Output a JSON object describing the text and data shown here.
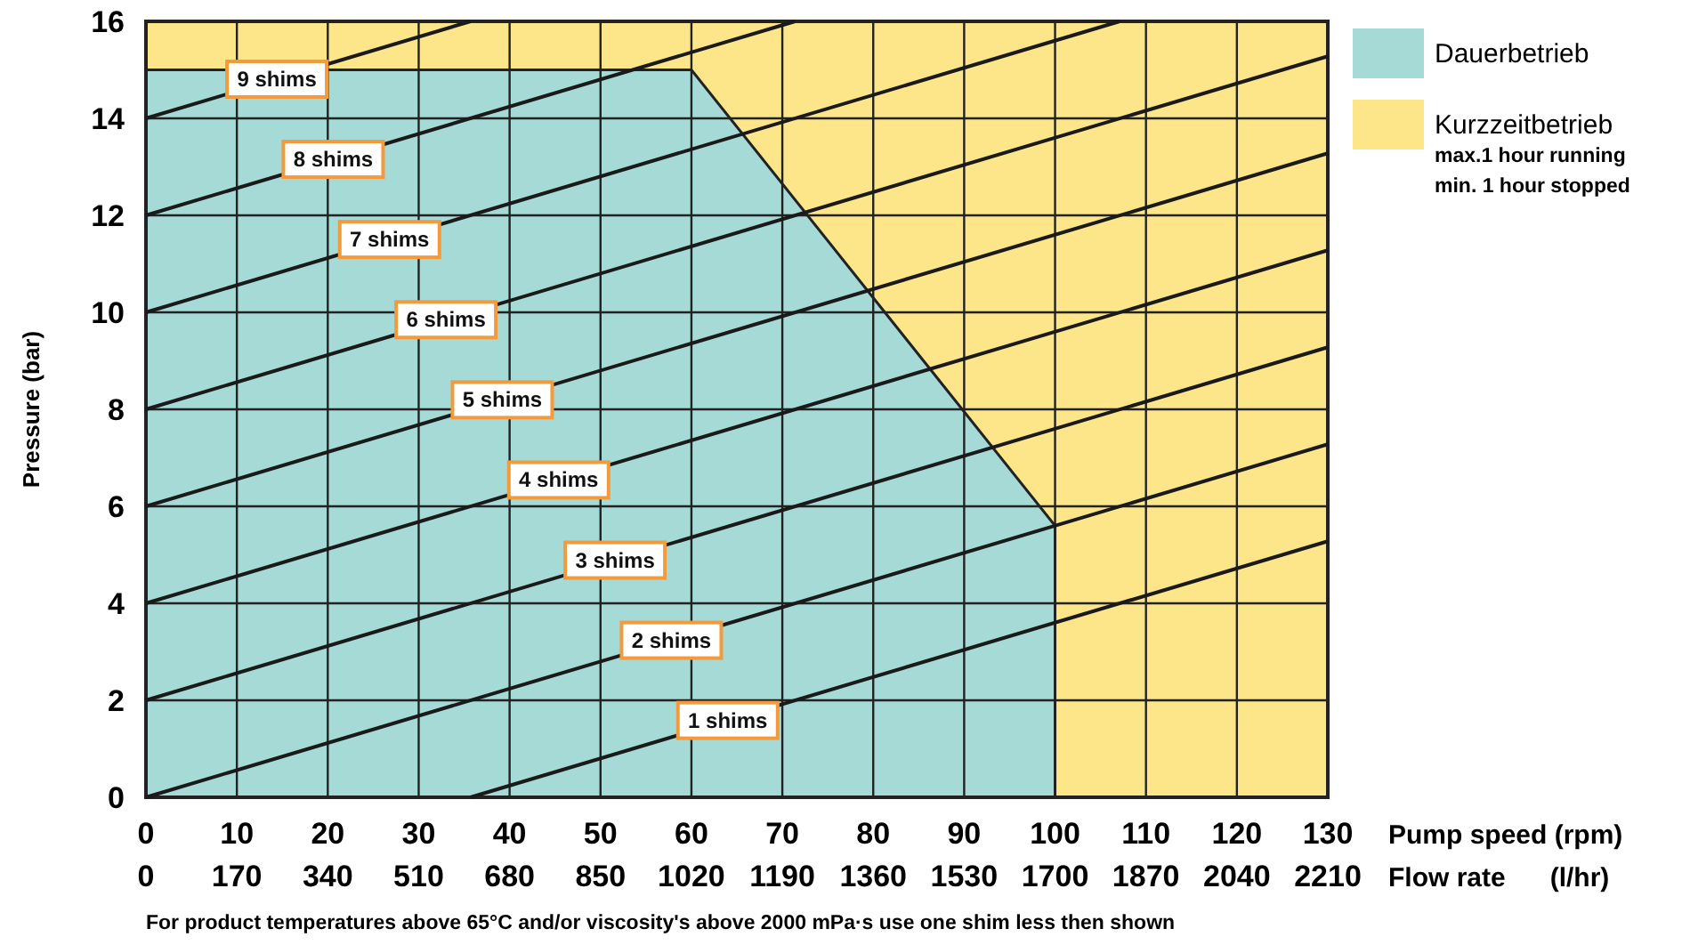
{
  "chart_data": {
    "type": "line",
    "xlabel": "Pump speed (rpm)",
    "x2label": "Flow rate      (l/hr)",
    "ylabel": "Pressure (bar)",
    "xlim": [
      0,
      130
    ],
    "xticks": [
      0,
      10,
      20,
      30,
      40,
      50,
      60,
      70,
      80,
      90,
      100,
      110,
      120,
      130
    ],
    "x2lim": [
      0,
      2210
    ],
    "x2ticks": [
      0,
      170,
      340,
      510,
      680,
      850,
      1020,
      1190,
      1360,
      1530,
      1700,
      1870,
      2040,
      2210
    ],
    "ylim": [
      0,
      16
    ],
    "yticks": [
      0,
      2,
      4,
      6,
      8,
      10,
      12,
      14,
      16
    ],
    "grid": true,
    "legend": "right",
    "series": [
      {
        "type": "area",
        "name": "Dauerbetrieb",
        "color": "#a6dad6",
        "x": [
          0,
          60,
          100,
          100
        ],
        "values": [
          15,
          15,
          5.6,
          0
        ]
      },
      {
        "type": "area",
        "name": "Kurzzeitbetrieb",
        "color": "#fde68a",
        "x": [
          0,
          130
        ],
        "values": [
          16,
          16
        ]
      },
      {
        "name": "1 shims",
        "color": "#1a1a1a",
        "x": [
          35.7,
          130
        ],
        "values": [
          0,
          5.28
        ]
      },
      {
        "name": "2 shims",
        "color": "#1a1a1a",
        "x": [
          0,
          130
        ],
        "values": [
          0,
          7.28
        ]
      },
      {
        "name": "3 shims",
        "color": "#1a1a1a",
        "x": [
          0,
          130
        ],
        "values": [
          2,
          9.28
        ]
      },
      {
        "name": "4 shims",
        "color": "#1a1a1a",
        "x": [
          0,
          130
        ],
        "values": [
          4,
          11.28
        ]
      },
      {
        "name": "5 shims",
        "color": "#1a1a1a",
        "x": [
          0,
          130
        ],
        "values": [
          6,
          13.28
        ]
      },
      {
        "name": "6 shims",
        "color": "#1a1a1a",
        "x": [
          0,
          130
        ],
        "values": [
          8,
          15.28
        ]
      },
      {
        "name": "7 shims",
        "color": "#1a1a1a",
        "x": [
          0,
          107.1
        ],
        "values": [
          10,
          16
        ]
      },
      {
        "name": "8 shims",
        "color": "#1a1a1a",
        "x": [
          0,
          71.4
        ],
        "values": [
          12,
          16
        ]
      },
      {
        "name": "9 shims",
        "color": "#1a1a1a",
        "x": [
          0,
          35.7
        ],
        "values": [
          14,
          16
        ]
      }
    ],
    "annotations": [
      "max.1 hour running",
      "min. 1 hour stopped",
      "For product temperatures above 65°C and/or viscosity's above 2000 mPa·s use one shim less then shown"
    ]
  }
}
